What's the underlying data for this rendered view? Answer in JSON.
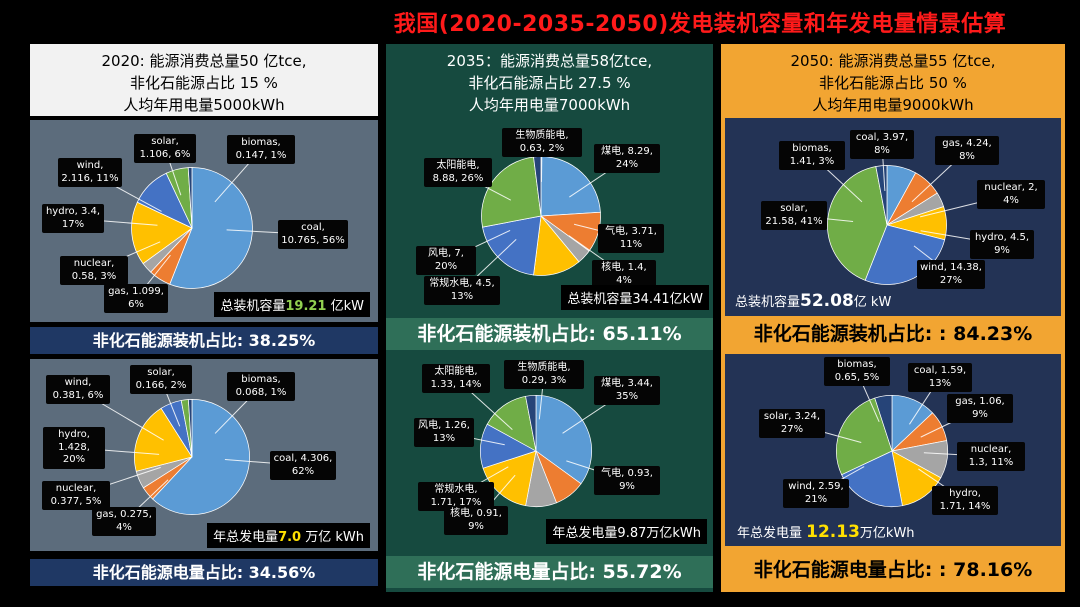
{
  "title": "我国(2020-2035-2050)发电装机容量和年发电量情景估算",
  "colors": {
    "title_red": "#ff1a1a",
    "col1_header_bg": "#f2f2f2",
    "col1_panel_slate": "#5c6c7c",
    "col1_bar_navy": "#1f3864",
    "col2_bg_teal": "#164a3f",
    "col2_bar_teal": "#2f6f58",
    "col3_bg_orange": "#f2a532",
    "col3_panel_navy": "#233355",
    "highlight_green": "#92d050",
    "highlight_yellow": "#ffe000",
    "label_box": "#050505"
  },
  "columns": [
    {
      "year": "2020",
      "header_lines": [
        "2020: 能源消费总量50 亿tce,",
        "非化石能源占比 15 %",
        "人均年用电量5000kWh"
      ],
      "capacity_total": {
        "prefix": "总装机容量",
        "value": "19.21",
        "suffix": " 亿kW"
      },
      "capacity_share": "非化石能源装机占比: 38.25%",
      "generation_total": {
        "prefix": "年总发电量",
        "value": "7.0",
        "suffix": " 万亿 kWh"
      },
      "generation_share": "非化石能源电量占比: 34.56%"
    },
    {
      "year": "2035",
      "header_lines": [
        "2035：能源消费总量58亿tce,",
        "非化石能源占比 27.5 %",
        "人均年用电量7000kWh"
      ],
      "capacity_total": {
        "prefix": "总装机容量",
        "value": "34.41",
        "suffix": "亿kW"
      },
      "capacity_share": "非化石能源装机占比: 65.11%",
      "generation_total": {
        "prefix": "年总发电量",
        "value": "9.87",
        "suffix": "万亿kWh"
      },
      "generation_share": "非化石能源电量占比: 55.72%"
    },
    {
      "year": "2050",
      "header_lines": [
        "2050:  能源消费总量55 亿tce,",
        "非化石能源占比 50 %",
        "人均年用电量9000kWh"
      ],
      "capacity_total": {
        "prefix": "总装机容量",
        "value": "52.08",
        "suffix": "亿 kW"
      },
      "capacity_share": "非化石能源装机占比: : 84.23%",
      "generation_total": {
        "prefix": "年总发电量 ",
        "value": "12.13",
        "suffix": "万亿kWh"
      },
      "generation_share": "非化石能源电量占比: : 78.16%"
    }
  ],
  "chart_data": [
    {
      "type": "pie",
      "title": "2020 总装机容量",
      "total": "19.21 亿kW",
      "unit": "亿kW",
      "slices": [
        {
          "id": "coal",
          "name": "coal",
          "value": 10.765,
          "share": 56,
          "label": "coal, 10.765, 56%",
          "color": "#5B9BD5"
        },
        {
          "id": "gas",
          "name": "gas",
          "value": 1.099,
          "share": 6,
          "label": "gas, 1.099, 6%",
          "color": "#ED7D31"
        },
        {
          "id": "nuclear",
          "name": "nuclear",
          "value": 0.58,
          "share": 3,
          "label": "nuclear, 0.58, 3%",
          "color": "#A5A5A5"
        },
        {
          "id": "hydro",
          "name": "hydro",
          "value": 3.4,
          "share": 17,
          "label": "hydro, 3.4, 17%",
          "color": "#FFC000"
        },
        {
          "id": "wind",
          "name": "wind",
          "value": 2.116,
          "share": 11,
          "label": "wind, 2.116, 11%",
          "color": "#4472C4"
        },
        {
          "id": "solar",
          "name": "solar",
          "value": 1.106,
          "share": 6,
          "label": "solar, 1.106, 6%",
          "color": "#70AD47"
        },
        {
          "id": "biomass",
          "name": "biomas",
          "value": 0.147,
          "share": 1,
          "label": "biomas, 0.147, 1%",
          "color": "#264478"
        }
      ]
    },
    {
      "type": "pie",
      "title": "2020 年总发电量",
      "total": "7.0 万亿 kWh",
      "unit": "万亿kWh",
      "slices": [
        {
          "id": "coal",
          "name": "coal",
          "value": 4.306,
          "share": 62,
          "label": "coal, 4.306, 62%",
          "color": "#5B9BD5"
        },
        {
          "id": "gas",
          "name": "gas",
          "value": 0.275,
          "share": 4,
          "label": "gas, 0.275, 4%",
          "color": "#ED7D31"
        },
        {
          "id": "nuclear",
          "name": "nuclear",
          "value": 0.377,
          "share": 5,
          "label": "nuclear, 0.377, 5%",
          "color": "#A5A5A5"
        },
        {
          "id": "hydro",
          "name": "hydro",
          "value": 1.428,
          "share": 20,
          "label": "hydro, 1.428, 20%",
          "color": "#FFC000"
        },
        {
          "id": "wind",
          "name": "wind",
          "value": 0.381,
          "share": 6,
          "label": "wind, 0.381, 6%",
          "color": "#4472C4"
        },
        {
          "id": "solar",
          "name": "solar",
          "value": 0.166,
          "share": 2,
          "label": "solar, 0.166, 2%",
          "color": "#70AD47"
        },
        {
          "id": "biomass",
          "name": "biomas",
          "value": 0.068,
          "share": 1,
          "label": "biomas, 0.068, 1%",
          "color": "#264478"
        }
      ]
    },
    {
      "type": "pie",
      "title": "2035 总装机容量",
      "total": "34.41亿kW",
      "unit": "亿kW",
      "slices": [
        {
          "id": "coal",
          "name": "煤电",
          "value": 8.29,
          "share": 24,
          "label": "煤电, 8.29, 24%",
          "color": "#5B9BD5"
        },
        {
          "id": "gas",
          "name": "气电",
          "value": 3.71,
          "share": 11,
          "label": "气电, 3.71, 11%",
          "color": "#ED7D31"
        },
        {
          "id": "nuclear",
          "name": "核电",
          "value": 1.4,
          "share": 4,
          "label": "核电, 1.4, 4%",
          "color": "#A5A5A5"
        },
        {
          "id": "hydro",
          "name": "常规水电",
          "value": 4.5,
          "share": 13,
          "label": "常规水电, 4.5, 13%",
          "color": "#FFC000"
        },
        {
          "id": "wind",
          "name": "风电",
          "value": 7,
          "share": 20,
          "label": "风电, 7, 20%",
          "color": "#4472C4"
        },
        {
          "id": "solar",
          "name": "太阳能电",
          "value": 8.88,
          "share": 26,
          "label": "太阳能电, 8.88, 26%",
          "color": "#70AD47"
        },
        {
          "id": "biomass",
          "name": "生物质能电",
          "value": 0.63,
          "share": 2,
          "label": "生物质能电, 0.63, 2%",
          "color": "#264478"
        }
      ]
    },
    {
      "type": "pie",
      "title": "2035 年总发电量",
      "total": "9.87万亿kWh",
      "unit": "万亿kWh",
      "slices": [
        {
          "id": "coal",
          "name": "煤电",
          "value": 3.44,
          "share": 35,
          "label": "煤电, 3.44, 35%",
          "color": "#5B9BD5"
        },
        {
          "id": "gas",
          "name": "气电",
          "value": 0.93,
          "share": 9,
          "label": "气电, 0.93, 9%",
          "color": "#ED7D31"
        },
        {
          "id": "nuclear",
          "name": "核电",
          "value": 0.91,
          "share": 9,
          "label": "核电, 0.91, 9%",
          "color": "#A5A5A5"
        },
        {
          "id": "hydro",
          "name": "常规水电",
          "value": 1.71,
          "share": 17,
          "label": "常规水电, 1.71, 17%",
          "color": "#FFC000"
        },
        {
          "id": "wind",
          "name": "风电",
          "value": 1.26,
          "share": 13,
          "label": "风电, 1.26, 13%",
          "color": "#4472C4"
        },
        {
          "id": "solar",
          "name": "太阳能电",
          "value": 1.33,
          "share": 14,
          "label": "太阳能电, 1.33, 14%",
          "color": "#70AD47"
        },
        {
          "id": "biomass",
          "name": "生物质能电",
          "value": 0.29,
          "share": 3,
          "label": "生物质能电, 0.29, 3%",
          "color": "#264478"
        }
      ]
    },
    {
      "type": "pie",
      "title": "2050 总装机容量",
      "total": "52.08亿 kW",
      "unit": "亿kW",
      "slices": [
        {
          "id": "coal",
          "name": "coal",
          "value": 3.97,
          "share": 8,
          "label": "coal, 3.97, 8%",
          "color": "#5B9BD5"
        },
        {
          "id": "gas",
          "name": "gas",
          "value": 4.24,
          "share": 8,
          "label": "gas, 4.24, 8%",
          "color": "#ED7D31"
        },
        {
          "id": "nuclear",
          "name": "nuclear",
          "value": 2,
          "share": 4,
          "label": "nuclear, 2, 4%",
          "color": "#A5A5A5"
        },
        {
          "id": "hydro",
          "name": "hydro",
          "value": 4.5,
          "share": 9,
          "label": "hydro, 4.5, 9%",
          "color": "#FFC000"
        },
        {
          "id": "wind",
          "name": "wind",
          "value": 14.38,
          "share": 27,
          "label": "wind, 14.38, 27%",
          "color": "#4472C4"
        },
        {
          "id": "solar",
          "name": "solar",
          "value": 21.58,
          "share": 41,
          "label": "solar, 21.58, 41%",
          "color": "#70AD47"
        },
        {
          "id": "biomass",
          "name": "biomas",
          "value": 1.41,
          "share": 3,
          "label": "biomas, 1.41, 3%",
          "color": "#264478"
        }
      ]
    },
    {
      "type": "pie",
      "title": "2050 年总发电量",
      "total": "12.13万亿kWh",
      "unit": "万亿kWh",
      "slices": [
        {
          "id": "coal",
          "name": "coal",
          "value": 1.59,
          "share": 13,
          "label": "coal, 1.59, 13%",
          "color": "#5B9BD5"
        },
        {
          "id": "gas",
          "name": "gas",
          "value": 1.06,
          "share": 9,
          "label": "gas, 1.06, 9%",
          "color": "#ED7D31"
        },
        {
          "id": "nuclear",
          "name": "nuclear",
          "value": 1.3,
          "share": 11,
          "label": "nuclear, 1.3, 11%",
          "color": "#A5A5A5"
        },
        {
          "id": "hydro",
          "name": "hydro",
          "value": 1.71,
          "share": 14,
          "label": "hydro, 1.71, 14%",
          "color": "#FFC000"
        },
        {
          "id": "wind",
          "name": "wind",
          "value": 2.59,
          "share": 21,
          "label": "wind, 2.59, 21%",
          "color": "#4472C4"
        },
        {
          "id": "solar",
          "name": "solar",
          "value": 3.24,
          "share": 27,
          "label": "solar, 3.24, 27%",
          "color": "#70AD47"
        },
        {
          "id": "biomass",
          "name": "biomas",
          "value": 0.65,
          "share": 5,
          "label": "biomas, 0.65, 5%",
          "color": "#264478"
        }
      ]
    }
  ]
}
